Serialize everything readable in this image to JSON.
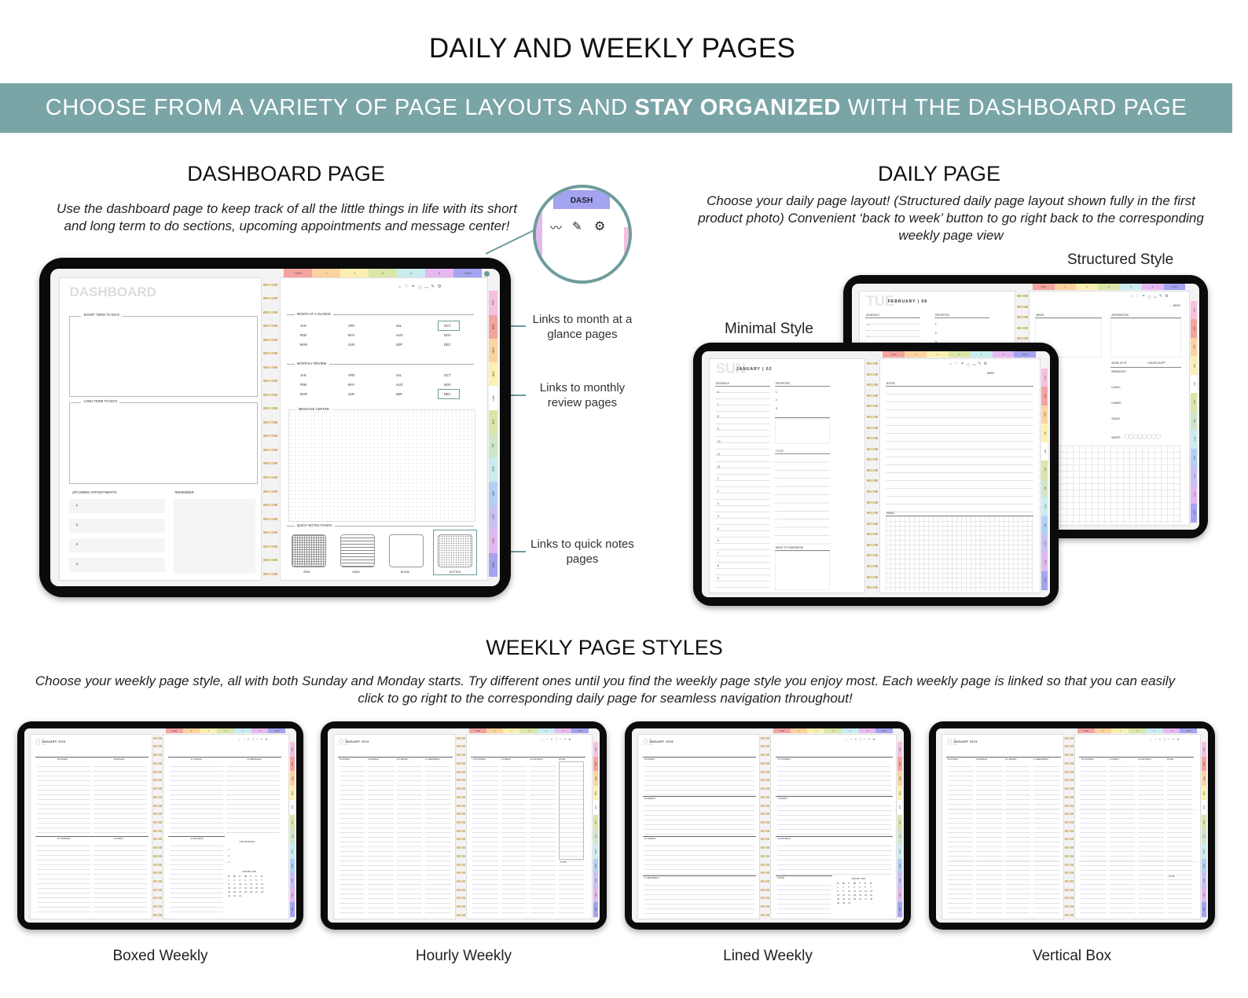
{
  "title": "DAILY AND WEEKLY PAGES",
  "banner": {
    "pre": "CHOOSE FROM A VARIETY OF PAGE LAYOUTS AND ",
    "bold": "STAY ORGANIZED",
    "post": " WITH THE DASHBOARD PAGE",
    "color": "#7aa5a6"
  },
  "dashboard_section": {
    "heading": "DASHBOARD PAGE",
    "description_line1": "Use the dashboard page to keep track of all the little things in life with its short",
    "description_line2": "and long term to do sections, upcoming appointments and message center!",
    "callouts": [
      "Links to month at a glance pages",
      "Links to monthly review pages",
      "Links to quick notes pages"
    ],
    "magnifier": {
      "tab": "DASH",
      "icons": [
        "chart-icon",
        "pencil-icon",
        "gear-icon"
      ]
    }
  },
  "daily_section": {
    "heading": "DAILY PAGE",
    "description_line1": "Choose your daily page layout! (Structured daily page layout shown fully in the first",
    "description_line2": "product photo) Convenient ‘back to week’ button to go right back to the corresponding",
    "description_line3": "weekly page view",
    "structured_label": "Structured Style",
    "minimal_label": "Minimal Style"
  },
  "weekly_section": {
    "heading": "WEEKLY PAGE STYLES",
    "description_line1": "Choose your weekly page style, all with both Sunday and Monday starts. Try different ones until you find the weekly page style you enjoy most. Each weekly page is linked so that you can easily",
    "description_line2": "click to go right to the corresponding daily page for seamless navigation throughout!",
    "styles": [
      "Boxed Weekly",
      "Hourly Weekly",
      "Lined Weekly",
      "Vertical Box"
    ]
  },
  "planner": {
    "top_tabs": [
      "YEAR",
      "1",
      "2",
      "3",
      "4",
      "5",
      "DASH"
    ],
    "top_tab_colors": [
      "#f4a3a0",
      "#fcd29e",
      "#fbf0b0",
      "#d9e6a8",
      "#c8ecef",
      "#e5b8ef",
      "#a3a3f0"
    ],
    "side_tabs": [
      "JAN",
      "FEB",
      "MAR",
      "APR",
      "MAY",
      "JUN",
      "JUL",
      "AUG",
      "SEP",
      "OCT",
      "NOV",
      "DEC"
    ],
    "side_tab_colors": [
      "#f4c0e0",
      "#f4a3a0",
      "#fcd29e",
      "#fbf0b0",
      "#ffffff",
      "#d9e6a8",
      "#cfe6c8",
      "#c8ecef",
      "#b0d0f4",
      "#c8c0f4",
      "#e0b8f0",
      "#a3a3f0"
    ],
    "nav_icons": [
      "home-icon",
      "heart-icon",
      "link-icon",
      "info-icon",
      "chart-icon",
      "pencil-icon",
      "gear-icon"
    ]
  },
  "dashboard_page": {
    "title": "DASHBOARD",
    "short_term": "SHORT TERM TO DO'S",
    "long_term": "LONG TERM TO DO'S",
    "appointments": "UPCOMING APPOINTMENTS",
    "appointment_numbers": [
      "1.",
      "2.",
      "3.",
      "4."
    ],
    "remember": "REMEMBER",
    "month_at_a_glance": "MONTH AT A GLANCE",
    "monthly_review": "MONTHLY REVIEW",
    "months_grid": [
      "JAN",
      "APR",
      "JUL",
      "OCT",
      "FEB",
      "MAY",
      "AUG",
      "NOV",
      "MAR",
      "JUN",
      "SEP",
      "DEC"
    ],
    "message_center": "MESSAGE CENTER",
    "quick_notes": "QUICK NOTES PAGES:",
    "quick_notes_types": [
      "GRID",
      "LINED",
      "BLANK",
      "DOTTED"
    ]
  },
  "daily_minimal": {
    "ghost": "SUN",
    "date": "JANUARY | 02",
    "week_link": "← WEEK",
    "schedule": "SCHEDULE",
    "priorities": "PRIORITIES",
    "priority_numbers": [
      "1.",
      "2.",
      "3."
    ],
    "todo": "TO DO",
    "move": "MOVE TO TOMORROW",
    "notes": "NOTES",
    "memo": "MEMO",
    "hours": [
      "6",
      "7",
      "8",
      "9",
      "10",
      "11",
      "12",
      "1",
      "2",
      "3",
      "4",
      "5",
      "6",
      "7",
      "8",
      "9"
    ]
  },
  "daily_structured": {
    "ghost": "TUE",
    "date": "FEBRUARY | 08",
    "week_link": "← WEEK",
    "schedule": "SCHEDULE",
    "priorities": "PRIORITIES",
    "priority_numbers": [
      "1.",
      "2.",
      "3."
    ],
    "hours": [
      "6",
      "7"
    ],
    "memo": "MEMO",
    "affirmation": "AFFIRMATION",
    "woke": "WOKE UP AT",
    "slept": "HOURS SLEPT",
    "meals": [
      "BREAKFAST",
      "LUNCH",
      "DINNER",
      "SNACK"
    ],
    "water": "WATER"
  },
  "weekly": {
    "ghost": "01",
    "month": "JANUARY 2023",
    "days": [
      "08 SUNDAY",
      "09 MONDAY",
      "10 TUESDAY",
      "11 WEDNESDAY",
      "12 THURSDAY",
      "13 FRIDAY",
      "14 SATURDAY"
    ],
    "top_priorities": "TOP PRIORITIES",
    "notes": "NOTES",
    "todo": "TO-DO",
    "calendar_title": "JANUARY 2023",
    "calendar_weekdays": [
      "S",
      "M",
      "T",
      "W",
      "T",
      "F",
      "S"
    ],
    "calendar_days": [
      "1",
      "2",
      "3",
      "4",
      "5",
      "6",
      "7",
      "8",
      "9",
      "10",
      "11",
      "12",
      "13",
      "14",
      "15",
      "16",
      "17",
      "18",
      "19",
      "20",
      "21",
      "22",
      "23",
      "24",
      "25",
      "26",
      "27",
      "28",
      "29",
      "30",
      "31"
    ]
  }
}
